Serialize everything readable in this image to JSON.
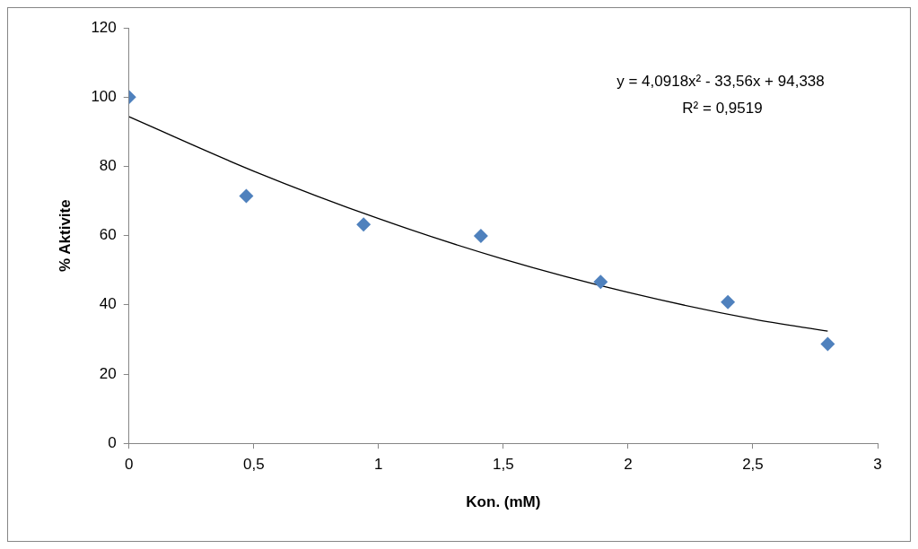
{
  "chart_data": {
    "type": "scatter",
    "xlabel": "Kon. (mM)",
    "ylabel": "% Aktivite",
    "xlim": [
      0,
      3
    ],
    "xticks": [
      0,
      {
        "value": 0.5,
        "label": "0,5"
      },
      1,
      {
        "value": 1.5,
        "label": "1,5"
      },
      2,
      {
        "value": 2.5,
        "label": "2,5"
      },
      3
    ],
    "ylim": [
      0,
      120
    ],
    "yticks": [
      0,
      20,
      40,
      60,
      80,
      100,
      120
    ],
    "grid": false,
    "legend": false,
    "marker": "diamond",
    "series": [
      {
        "type": "scatter",
        "color": "#4f81bd",
        "x": [
          0,
          0.47,
          0.94,
          1.41,
          1.89,
          2.4,
          2.8
        ],
        "values": [
          100,
          71.4,
          63.2,
          59.9,
          46.6,
          40.8,
          28.7
        ]
      },
      {
        "type": "line",
        "color": "#000000",
        "marker": "none",
        "x": [
          0,
          0.5,
          1,
          1.5,
          2,
          2.5,
          2.8
        ],
        "values": [
          94.3,
          78.6,
          64.9,
          53.2,
          43.6,
          35.9,
          32.4
        ]
      }
    ],
    "annotations": [
      "y = 4,0918x² - 33,56x + 94,338",
      "R² = 0,9519"
    ]
  }
}
